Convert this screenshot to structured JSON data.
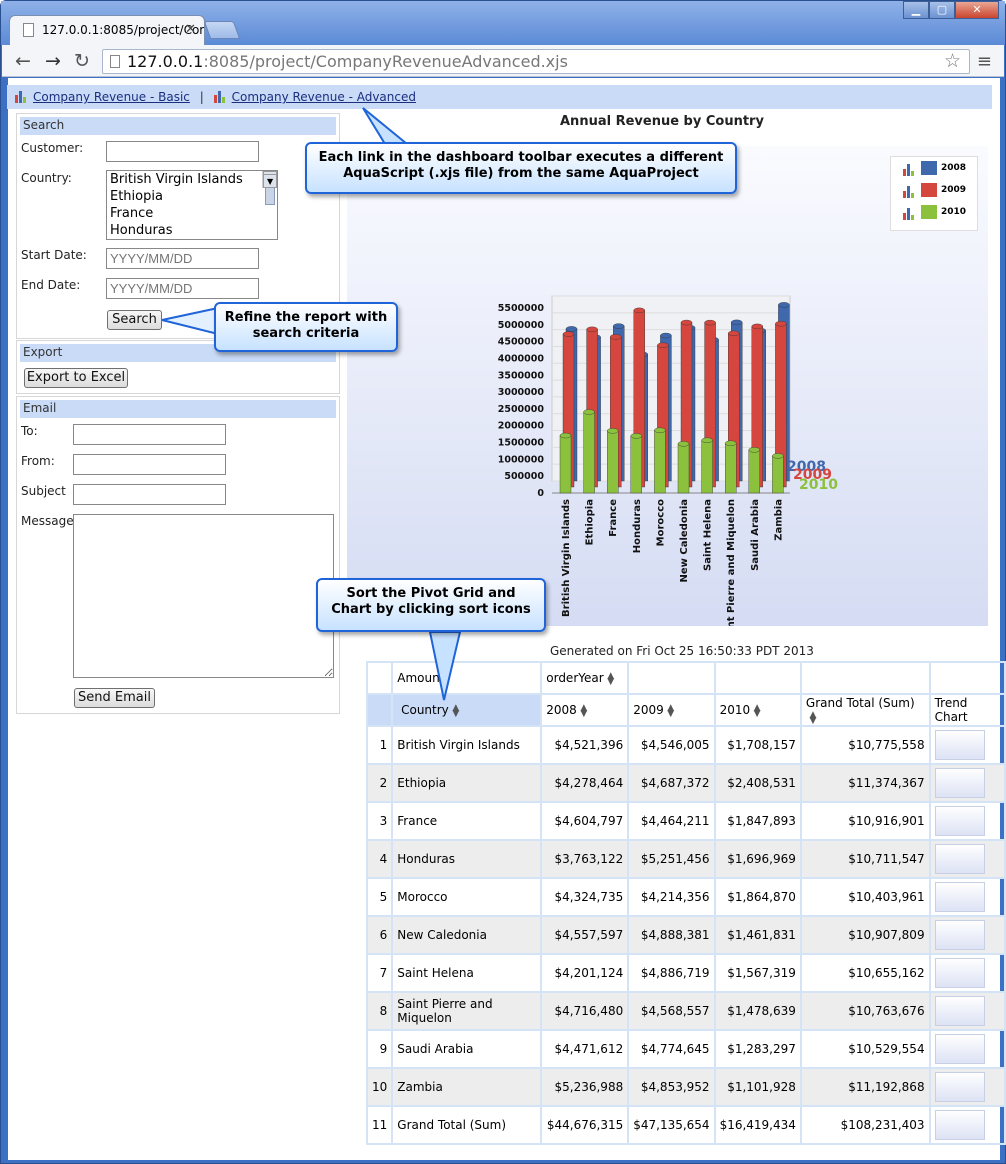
{
  "browser": {
    "tab_title": "127.0.0.1:8085/project/Com",
    "address_host": "127.0.0.1",
    "address_rest": ":8085/project/CompanyRevenueAdvanced.xjs"
  },
  "linkbar": {
    "link_basic": "Company Revenue - Basic",
    "separator": "|",
    "link_advanced": "Company Revenue - Advanced"
  },
  "search": {
    "header": "Search",
    "customer_label": "Customer:",
    "customer_value": "",
    "country_label": "Country:",
    "country_options": [
      "British Virgin Islands",
      "Ethiopia",
      "France",
      "Honduras"
    ],
    "start_label": "Start Date:",
    "start_placeholder": "YYYY/MM/DD",
    "end_label": "End Date:",
    "end_placeholder": "YYYY/MM/DD",
    "search_button": "Search"
  },
  "export": {
    "header": "Export",
    "excel_button": "Export to Excel"
  },
  "email": {
    "header": "Email",
    "to_label": "To:",
    "from_label": "From:",
    "subject_label": "Subject",
    "message_label": "Message",
    "send_button": "Send Email"
  },
  "callouts": {
    "toolbar": "Each link in the dashboard toolbar executes a different AquaScript (.xjs file) from the same AquaProject",
    "refine": "Refine the report with search criteria",
    "sort": "Sort the Pivot Grid and Chart by clicking sort icons"
  },
  "colors": {
    "series_2008": "#3f68ad",
    "series_2009": "#d5463f",
    "series_2010": "#8cc13e"
  },
  "chart_data": {
    "type": "bar",
    "title": "Annual Revenue by Country",
    "categories": [
      "British Virgin Islands",
      "Ethiopia",
      "France",
      "Honduras",
      "Morocco",
      "New Caledonia",
      "Saint Helena",
      "Saint Pierre and Miquelon",
      "Saudi Arabia",
      "Zambia"
    ],
    "series": [
      {
        "name": "2008",
        "values": [
          4521396,
          4278464,
          4604797,
          3763122,
          4324735,
          4557597,
          4201124,
          4716480,
          4471612,
          5236988
        ]
      },
      {
        "name": "2009",
        "values": [
          4546005,
          4687372,
          4464211,
          5251456,
          4214356,
          4888381,
          4886719,
          4568557,
          4774645,
          4853952
        ]
      },
      {
        "name": "2010",
        "values": [
          1708157,
          2408531,
          1847893,
          1696969,
          1864870,
          1461831,
          1567319,
          1478639,
          1283297,
          1101928
        ]
      }
    ],
    "y_ticks": [
      "5500000",
      "5000000",
      "4500000",
      "4000000",
      "3500000",
      "3000000",
      "2500000",
      "2000000",
      "1500000",
      "1000000",
      "500000",
      "0"
    ],
    "ylim": [
      0,
      5500000
    ],
    "legend_position": "top-right"
  },
  "report": {
    "generated": "Generated on Fri Oct 25 16:50:33 PDT 2013",
    "amount_label": "Amount",
    "order_year_label": "orderYear",
    "country_col": "Country",
    "col_2008": "2008",
    "col_2009": "2009",
    "col_2010": "2010",
    "grand_total_col": "Grand Total (Sum)",
    "trend_col": "Trend Chart",
    "rows": [
      {
        "num": "1",
        "country": "British Virgin Islands",
        "v2008": "$4,521,396",
        "v2009": "$4,546,005",
        "v2010": "$1,708,157",
        "total": "$10,775,558"
      },
      {
        "num": "2",
        "country": "Ethiopia",
        "v2008": "$4,278,464",
        "v2009": "$4,687,372",
        "v2010": "$2,408,531",
        "total": "$11,374,367"
      },
      {
        "num": "3",
        "country": "France",
        "v2008": "$4,604,797",
        "v2009": "$4,464,211",
        "v2010": "$1,847,893",
        "total": "$10,916,901"
      },
      {
        "num": "4",
        "country": "Honduras",
        "v2008": "$3,763,122",
        "v2009": "$5,251,456",
        "v2010": "$1,696,969",
        "total": "$10,711,547"
      },
      {
        "num": "5",
        "country": "Morocco",
        "v2008": "$4,324,735",
        "v2009": "$4,214,356",
        "v2010": "$1,864,870",
        "total": "$10,403,961"
      },
      {
        "num": "6",
        "country": "New Caledonia",
        "v2008": "$4,557,597",
        "v2009": "$4,888,381",
        "v2010": "$1,461,831",
        "total": "$10,907,809"
      },
      {
        "num": "7",
        "country": "Saint Helena",
        "v2008": "$4,201,124",
        "v2009": "$4,886,719",
        "v2010": "$1,567,319",
        "total": "$10,655,162"
      },
      {
        "num": "8",
        "country": "Saint Pierre and Miquelon",
        "v2008": "$4,716,480",
        "v2009": "$4,568,557",
        "v2010": "$1,478,639",
        "total": "$10,763,676"
      },
      {
        "num": "9",
        "country": "Saudi Arabia",
        "v2008": "$4,471,612",
        "v2009": "$4,774,645",
        "v2010": "$1,283,297",
        "total": "$10,529,554"
      },
      {
        "num": "10",
        "country": "Zambia",
        "v2008": "$5,236,988",
        "v2009": "$4,853,952",
        "v2010": "$1,101,928",
        "total": "$11,192,868"
      },
      {
        "num": "11",
        "country": "Grand Total (Sum)",
        "v2008": "$44,676,315",
        "v2009": "$47,135,654",
        "v2010": "$16,419,434",
        "total": "$108,231,403"
      }
    ]
  }
}
